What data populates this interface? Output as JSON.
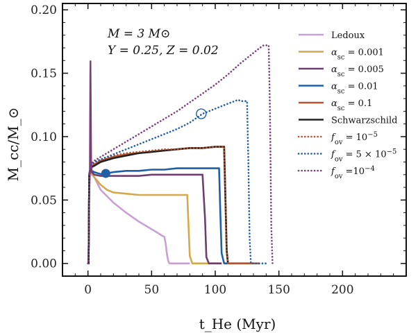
{
  "chart_data": {
    "type": "line",
    "xlabel": "t_He (Myr)",
    "ylabel": "M_cc/M_⊙",
    "xlim": [
      -20,
      250
    ],
    "ylim": [
      -0.01,
      0.205
    ],
    "xticks": [
      0,
      50,
      100,
      150,
      200
    ],
    "yticks": [
      0.0,
      0.05,
      0.1,
      0.15,
      0.2
    ],
    "xtick_labels": [
      "0",
      "50",
      "100",
      "150",
      "200"
    ],
    "ytick_labels": [
      "0.00",
      "0.05",
      "0.10",
      "0.15",
      "0.20"
    ],
    "annotation_lines": [
      "M = 3 M⊙",
      "Y = 0.25, Z = 0.02"
    ],
    "legend_position": "right",
    "series": [
      {
        "name": "Ledoux",
        "color": "#c8a0d4",
        "dash": "solid",
        "x": [
          0,
          0.5,
          1,
          2,
          3,
          5,
          10,
          20,
          30,
          40,
          50,
          55,
          58,
          60,
          61,
          62,
          63,
          64,
          65,
          80
        ],
        "y": [
          0,
          0,
          0.06,
          0.072,
          0.07,
          0.068,
          0.058,
          0.048,
          0.04,
          0.033,
          0.027,
          0.024,
          0.022,
          0.021,
          0.016,
          0.008,
          0.002,
          0,
          0,
          0
        ]
      },
      {
        "name": "α_sc = 0.001",
        "color": "#d4a84b",
        "dash": "solid",
        "x": [
          0,
          0.5,
          1,
          2,
          3,
          5,
          10,
          15,
          20,
          30,
          40,
          50,
          60,
          70,
          76,
          78,
          79,
          80,
          82,
          105
        ],
        "y": [
          0,
          0,
          0.07,
          0.072,
          0.071,
          0.068,
          0.062,
          0.058,
          0.056,
          0.055,
          0.054,
          0.054,
          0.054,
          0.054,
          0.054,
          0.054,
          0.03,
          0.006,
          0,
          0
        ]
      },
      {
        "name": "α_sc = 0.005",
        "color": "#6e3f6e",
        "dash": "solid",
        "x": [
          0,
          0.5,
          1,
          2,
          3,
          5,
          10,
          20,
          30,
          40,
          50,
          60,
          70,
          80,
          88,
          90,
          92,
          93,
          95,
          105
        ],
        "y": [
          0,
          0,
          0.07,
          0.074,
          0.072,
          0.07,
          0.069,
          0.069,
          0.069,
          0.069,
          0.07,
          0.07,
          0.07,
          0.07,
          0.07,
          0.07,
          0.035,
          0.005,
          0,
          0
        ]
      },
      {
        "name": "α_sc = 0.01",
        "color": "#1f5fa8",
        "dash": "solid",
        "x": [
          0,
          0.5,
          1,
          2,
          3,
          5,
          8,
          12,
          15,
          20,
          30,
          40,
          50,
          60,
          70,
          80,
          90,
          100,
          103,
          104,
          105,
          107,
          130
        ],
        "y": [
          0,
          0,
          0.07,
          0.074,
          0.073,
          0.072,
          0.071,
          0.07,
          0.071,
          0.072,
          0.073,
          0.073,
          0.074,
          0.074,
          0.075,
          0.075,
          0.075,
          0.075,
          0.075,
          0.04,
          0.008,
          0,
          0
        ]
      },
      {
        "name": "α_sc = 0.1",
        "color": "#b8532f",
        "dash": "solid",
        "x": [
          0,
          0.5,
          1,
          2,
          3,
          5,
          10,
          20,
          30,
          40,
          50,
          60,
          70,
          80,
          90,
          100,
          106,
          107,
          108,
          109,
          110,
          135
        ],
        "y": [
          0,
          0,
          0.07,
          0.076,
          0.077,
          0.078,
          0.081,
          0.084,
          0.086,
          0.087,
          0.088,
          0.089,
          0.09,
          0.091,
          0.091,
          0.092,
          0.092,
          0.092,
          0.05,
          0.01,
          0,
          0
        ]
      },
      {
        "name": "Schwarzschild",
        "color": "#222222",
        "dash": "solid",
        "x": [
          0,
          0.5,
          1,
          2,
          3,
          5,
          10,
          20,
          30,
          40,
          50,
          60,
          70,
          80,
          90,
          100,
          106,
          107,
          108,
          109,
          110
        ],
        "y": [
          0,
          0,
          0.07,
          0.075,
          0.076,
          0.077,
          0.08,
          0.083,
          0.085,
          0.087,
          0.088,
          0.089,
          0.09,
          0.091,
          0.091,
          0.092,
          0.092,
          0.092,
          0.05,
          0.01,
          0
        ]
      },
      {
        "name": "f_ov = 10^-5",
        "color": "#b8532f",
        "dash": "dotted",
        "x": [
          0,
          0.5,
          1,
          2,
          3,
          5,
          10,
          20,
          30,
          40,
          50,
          60,
          70,
          80,
          90,
          100,
          106,
          107,
          108,
          109,
          110
        ],
        "y": [
          0,
          0,
          0.07,
          0.076,
          0.078,
          0.079,
          0.082,
          0.085,
          0.087,
          0.088,
          0.089,
          0.09,
          0.09,
          0.091,
          0.091,
          0.092,
          0.092,
          0.092,
          0.05,
          0.01,
          0
        ]
      },
      {
        "name": "f_ov = 5×10^-5",
        "color": "#1f5fa8",
        "dash": "dotted",
        "x": [
          0,
          0.5,
          1,
          2,
          3,
          5,
          10,
          20,
          30,
          40,
          50,
          60,
          70,
          80,
          90,
          100,
          110,
          118,
          120,
          122,
          124,
          125,
          126,
          127,
          128,
          140
        ],
        "y": [
          0,
          0,
          0.07,
          0.076,
          0.078,
          0.08,
          0.082,
          0.086,
          0.09,
          0.094,
          0.098,
          0.102,
          0.106,
          0.111,
          0.118,
          0.122,
          0.126,
          0.129,
          0.128,
          0.128,
          0.128,
          0.128,
          0.08,
          0.02,
          0,
          0
        ]
      },
      {
        "name": "f_ov = 10^-4",
        "color": "#7a3f7a",
        "dash": "dotted",
        "x": [
          0,
          0.5,
          1,
          2,
          3,
          5,
          10,
          20,
          30,
          40,
          50,
          60,
          70,
          80,
          90,
          100,
          110,
          120,
          130,
          135,
          138,
          140,
          142,
          143,
          144,
          145
        ],
        "y": [
          0,
          0,
          0.07,
          0.077,
          0.079,
          0.081,
          0.084,
          0.09,
          0.096,
          0.102,
          0.108,
          0.114,
          0.12,
          0.127,
          0.134,
          0.141,
          0.149,
          0.158,
          0.166,
          0.17,
          0.172,
          0.172,
          0.172,
          0.12,
          0.03,
          0
        ]
      }
    ],
    "initial_spike": {
      "x": [
        1.5,
        1.8,
        2.0,
        2.2,
        2.5,
        3.0
      ],
      "y": [
        0.07,
        0.145,
        0.16,
        0.13,
        0.08,
        0.072
      ],
      "color": "#7a3f7a"
    },
    "markers": [
      {
        "x": 14,
        "y": 0.071,
        "style": "filled-circle",
        "color": "#1f5fa8"
      },
      {
        "x": 89,
        "y": 0.118,
        "style": "open-circle",
        "color": "#1f5fa8"
      }
    ]
  }
}
